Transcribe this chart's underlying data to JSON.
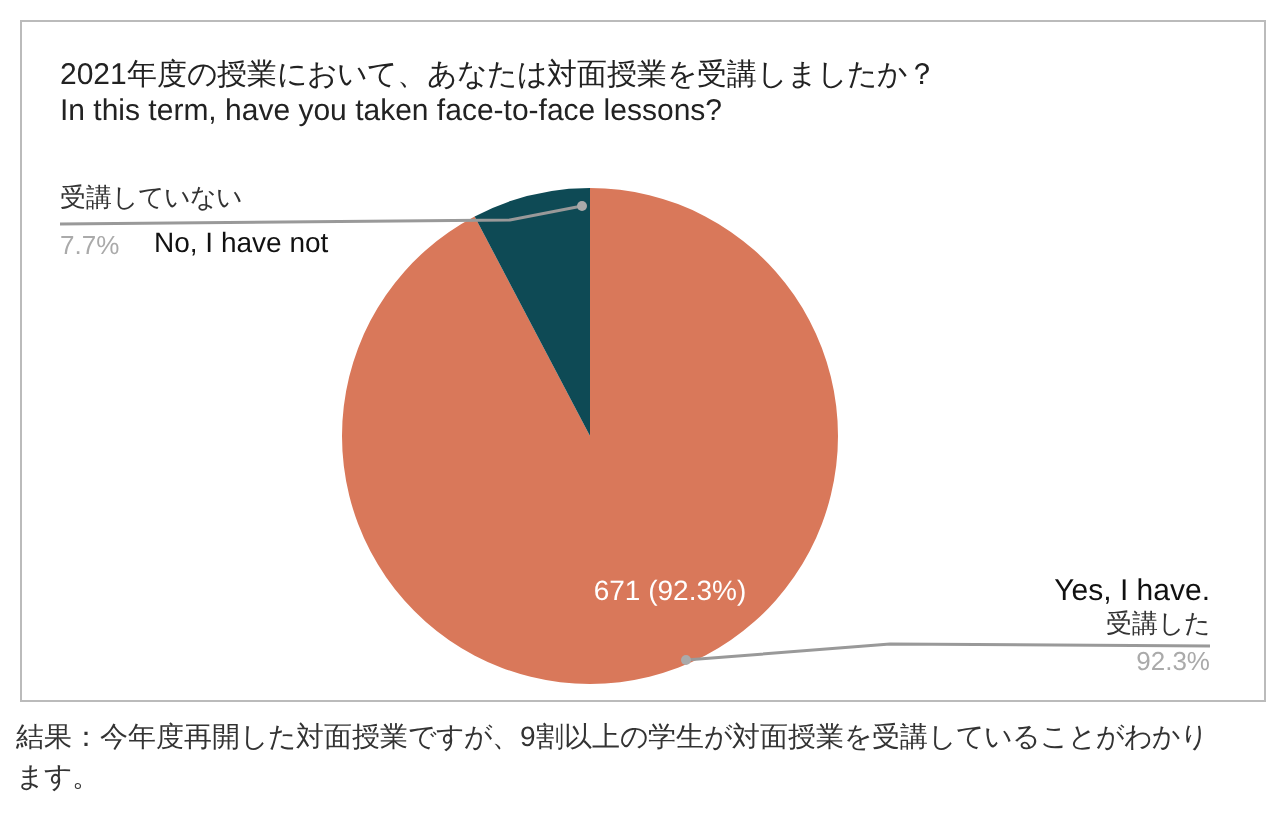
{
  "chart_data": {
    "type": "pie",
    "title": "2021年度の授業において、あなたは対面授業を受講しましたか？",
    "subtitle": "In this term, have you taken face-to-face lessons?",
    "categories": [
      "受講した",
      "受講していない"
    ],
    "values": [
      92.3,
      7.7
    ],
    "colors": [
      "#d9785a",
      "#0e4a55"
    ],
    "value_labels": [
      "671 (92.3%)",
      null
    ],
    "annotations": [
      "Yes, I have.",
      "92.3%",
      "No, I have not",
      "7.7%",
      "結果：今年度再開した対面授業ですが、9割以上の学生が対面授業を受講していることがわかります。"
    ]
  }
}
